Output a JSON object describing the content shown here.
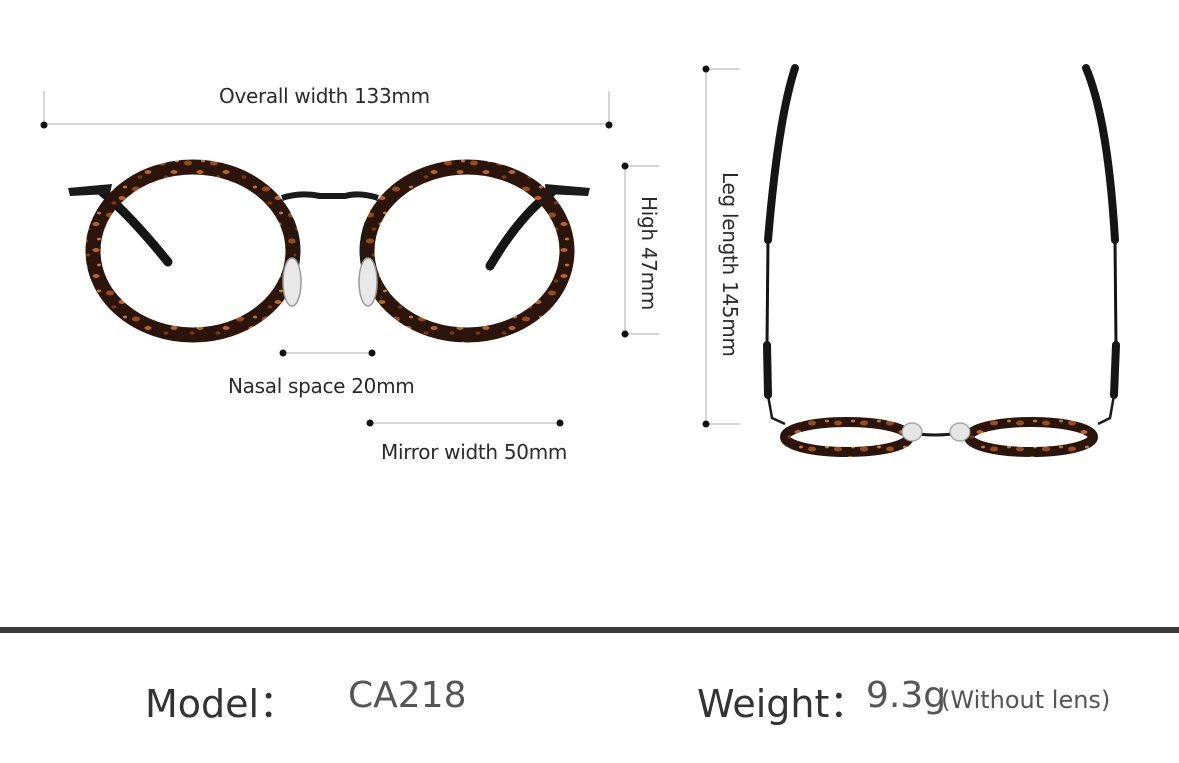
{
  "dimensions": {
    "overall_width": "Overall width 133mm",
    "height": "High 47mm",
    "leg_length": "Leg length 145mm",
    "nasal_space": "Nasal space 20mm",
    "mirror_width": "Mirror width 50mm"
  },
  "specs": {
    "model_label": "Model：",
    "model_value": "CA218",
    "weight_label": "Weight：",
    "weight_value": "9.3g",
    "weight_note": "(Without lens)"
  },
  "colors": {
    "tortoise_dark": "#2b140a",
    "tortoise_light": "#a0521c",
    "metal": "#1a1a1a",
    "dimension_line": "#c8c8c8",
    "divider": "#3a3a3a"
  }
}
